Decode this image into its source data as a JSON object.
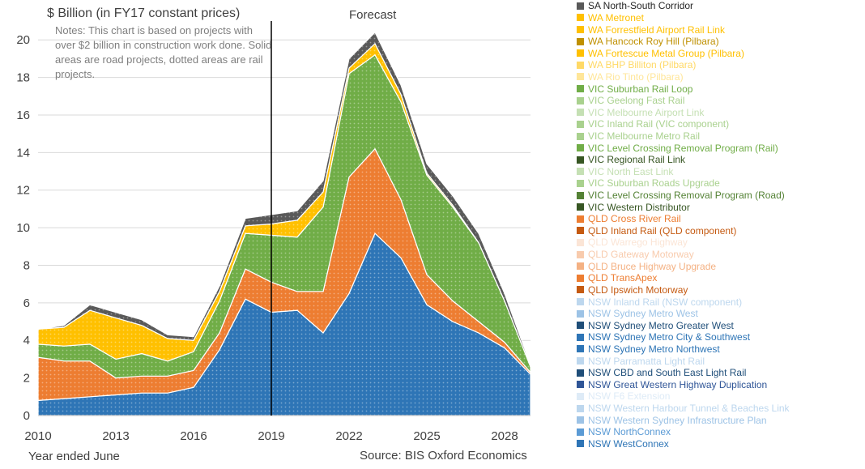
{
  "chart_data": {
    "type": "area",
    "title": "$ Billion (in FY17 constant prices)",
    "notes": "Notes: This chart is based on projects with over $2 billion in construction work done. Solid areas are road projects, dotted areas are rail projects.",
    "forecast_label": "Forecast",
    "forecast_start": 2019,
    "xlabel": "Year ended June",
    "source": "Source: BIS Oxford Economics",
    "xlim": [
      2010,
      2029
    ],
    "ylim": [
      0,
      21
    ],
    "x_ticks": [
      2010,
      2013,
      2016,
      2019,
      2022,
      2025,
      2028
    ],
    "y_ticks": [
      0,
      2,
      4,
      6,
      8,
      10,
      12,
      14,
      16,
      18,
      20
    ],
    "grid": "horizontal",
    "legend_position": "right",
    "x": [
      2010,
      2011,
      2012,
      2013,
      2014,
      2015,
      2016,
      2017,
      2018,
      2019,
      2020,
      2021,
      2022,
      2023,
      2024,
      2025,
      2026,
      2027,
      2028,
      2029
    ],
    "stack_groups": [
      {
        "name": "NSW",
        "color": "#2e75b6",
        "totals": [
          0.8,
          0.9,
          1.0,
          1.1,
          1.2,
          1.2,
          1.5,
          3.5,
          6.2,
          5.5,
          5.6,
          4.4,
          6.5,
          9.7,
          8.4,
          5.9,
          5.0,
          4.4,
          3.6,
          2.2
        ]
      },
      {
        "name": "QLD",
        "color": "#ed7d31",
        "totals": [
          2.3,
          2.0,
          1.9,
          0.9,
          0.9,
          0.9,
          0.9,
          0.9,
          1.6,
          1.6,
          1.0,
          2.2,
          6.2,
          4.5,
          3.1,
          1.6,
          1.1,
          0.6,
          0.3,
          0.1
        ]
      },
      {
        "name": "VIC",
        "color": "#70ad47",
        "totals": [
          0.7,
          0.8,
          0.9,
          1.0,
          1.2,
          0.8,
          1.0,
          1.7,
          1.9,
          2.5,
          2.9,
          4.5,
          5.5,
          5.0,
          5.2,
          5.3,
          5.0,
          4.2,
          2.2,
          0.3
        ]
      },
      {
        "name": "WA",
        "color": "#ffc000",
        "totals": [
          0.8,
          1.0,
          1.8,
          2.2,
          1.5,
          1.2,
          0.6,
          0.5,
          0.4,
          0.6,
          0.9,
          0.8,
          0.3,
          0.6,
          0.4,
          0.1,
          0.1,
          0.0,
          0.0,
          0.0
        ]
      },
      {
        "name": "SA",
        "color": "#595959",
        "totals": [
          0.0,
          0.1,
          0.3,
          0.3,
          0.3,
          0.2,
          0.2,
          0.3,
          0.4,
          0.5,
          0.5,
          0.6,
          0.5,
          0.6,
          0.5,
          0.5,
          0.5,
          0.5,
          0.4,
          0.1
        ]
      }
    ],
    "legend": [
      {
        "label": "SA North-South Corridor",
        "color": "#595959"
      },
      {
        "label": "WA Metronet",
        "color": "#ffc000"
      },
      {
        "label": "WA Forrestfield Airport Rail Link",
        "color": "#ffc000"
      },
      {
        "label": "WA Hancock Roy Hill (Pilbara)",
        "color": "#bf9000"
      },
      {
        "label": "WA Fortescue Metal Group (Pilbara)",
        "color": "#ffc000"
      },
      {
        "label": "WA BHP Billiton (Pilbara)",
        "color": "#ffd966"
      },
      {
        "label": "WA Rio Tinto (Pilbara)",
        "color": "#ffe699"
      },
      {
        "label": "VIC Suburban Rail Loop",
        "color": "#70ad47"
      },
      {
        "label": "VIC Geelong Fast Rail",
        "color": "#a9d18e"
      },
      {
        "label": "VIC Melbourne Airport Link",
        "color": "#c5e0b4"
      },
      {
        "label": "VIC Inland Rail (VIC component)",
        "color": "#a9d18e"
      },
      {
        "label": "VIC Melbourne Metro Rail",
        "color": "#a9d18e"
      },
      {
        "label": "VIC Level Crossing Removal Program (Rail)",
        "color": "#70ad47"
      },
      {
        "label": "VIC Regional Rail Link",
        "color": "#375623"
      },
      {
        "label": "VIC North East Link",
        "color": "#c5e0b4"
      },
      {
        "label": "VIC Suburban Roads Upgrade",
        "color": "#a9d18e"
      },
      {
        "label": "VIC Level Crossing Removal Program (Road)",
        "color": "#548235"
      },
      {
        "label": "VIC Western Distributor",
        "color": "#375623"
      },
      {
        "label": "QLD Cross River Rail",
        "color": "#ed7d31"
      },
      {
        "label": "QLD Inland Rail (QLD component)",
        "color": "#c55a11"
      },
      {
        "label": "QLD Warrego Highway",
        "color": "#fbe5d6"
      },
      {
        "label": "QLD Gateway Motorway",
        "color": "#f8cbad"
      },
      {
        "label": "QLD Bruce Highway Upgrade",
        "color": "#f4b183"
      },
      {
        "label": "QLD TransApex",
        "color": "#ed7d31"
      },
      {
        "label": "QLD Ipswich Motorway",
        "color": "#c55a11"
      },
      {
        "label": "NSW Inland Rail (NSW component)",
        "color": "#bdd7ee"
      },
      {
        "label": "NSW Sydney Metro West",
        "color": "#9dc3e6"
      },
      {
        "label": "NSW Sydney Metro Greater West",
        "color": "#1f4e79"
      },
      {
        "label": "NSW Sydney Metro City & Southwest",
        "color": "#2e75b6"
      },
      {
        "label": "NSW Sydney Metro Northwest",
        "color": "#2e75b6"
      },
      {
        "label": "NSW Parramatta Light Rail",
        "color": "#bdd7ee"
      },
      {
        "label": "NSW CBD and South East Light Rail",
        "color": "#1f4e79"
      },
      {
        "label": "NSW Great Western Highway Duplication",
        "color": "#2f5597"
      },
      {
        "label": "NSW F6 Extension",
        "color": "#deebf7"
      },
      {
        "label": "NSW Western Harbour Tunnel & Beaches Link",
        "color": "#bdd7ee"
      },
      {
        "label": "NSW Western Sydney Infrastructure Plan",
        "color": "#9dc3e6"
      },
      {
        "label": "NSW NorthConnex",
        "color": "#5b9bd5"
      },
      {
        "label": "NSW WestConnex",
        "color": "#2e75b6"
      }
    ]
  }
}
